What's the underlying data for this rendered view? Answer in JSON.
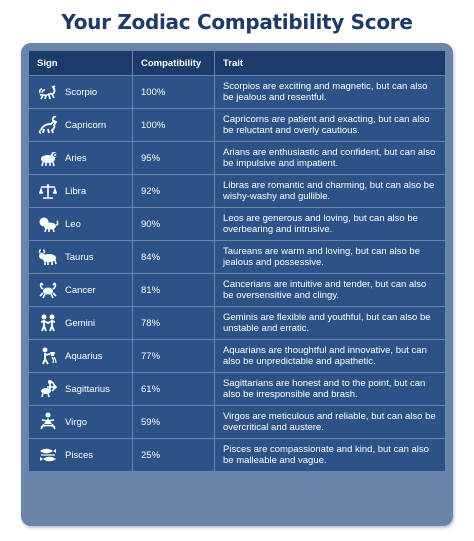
{
  "title": "Your Zodiac Compatibility Score",
  "headers": {
    "sign": "Sign",
    "compat": "Compatibility",
    "trait": "Trait"
  },
  "rows": [
    {
      "sign": "Scorpio",
      "compat": "100%",
      "trait": "Scorpios are exciting and magnetic, but can also be jealous and resentful.",
      "icon": "scorpion-icon"
    },
    {
      "sign": "Capricorn",
      "compat": "100%",
      "trait": "Capricorns are patient and exacting, but can also be reluctant and overly cautious.",
      "icon": "goat-icon"
    },
    {
      "sign": "Aries",
      "compat": "95%",
      "trait": "Arians are enthusiastic and confident, but can also be impulsive and impatient.",
      "icon": "ram-icon"
    },
    {
      "sign": "Libra",
      "compat": "92%",
      "trait": "Libras are romantic and charming, but can also be wishy-washy and gullible.",
      "icon": "scales-icon"
    },
    {
      "sign": "Leo",
      "compat": "90%",
      "trait": "Leos are generous and loving, but can also be overbearing and intrusive.",
      "icon": "lion-icon"
    },
    {
      "sign": "Taurus",
      "compat": "84%",
      "trait": "Taureans are warm and loving, but can also be jealous and possessive.",
      "icon": "bull-icon"
    },
    {
      "sign": "Cancer",
      "compat": "81%",
      "trait": "Cancerians are intuitive and tender, but can also be oversensitive and clingy.",
      "icon": "crab-icon"
    },
    {
      "sign": "Gemini",
      "compat": "78%",
      "trait": "Geminis are flexible and youthful, but can also be unstable and erratic.",
      "icon": "twins-icon"
    },
    {
      "sign": "Aquarius",
      "compat": "77%",
      "trait": "Aquarians are thoughtful and innovative, but can also be unpredictable and apathetic.",
      "icon": "water-bearer-icon"
    },
    {
      "sign": "Sagittarius",
      "compat": "61%",
      "trait": "Sagittarians are honest and to the point, but can also be irresponsible and brash.",
      "icon": "archer-icon"
    },
    {
      "sign": "Virgo",
      "compat": "59%",
      "trait": "Virgos are meticulous and reliable, but can also be overcritical and austere.",
      "icon": "maiden-icon"
    },
    {
      "sign": "Pisces",
      "compat": "25%",
      "trait": "Pisces are compassionate and kind, but can also be malleable and vague.",
      "icon": "fish-icon"
    }
  ],
  "colors": {
    "title": "#1e3a66",
    "panel": "#6a85aa",
    "header": "#1c3a6a",
    "row": "#2c5287"
  }
}
